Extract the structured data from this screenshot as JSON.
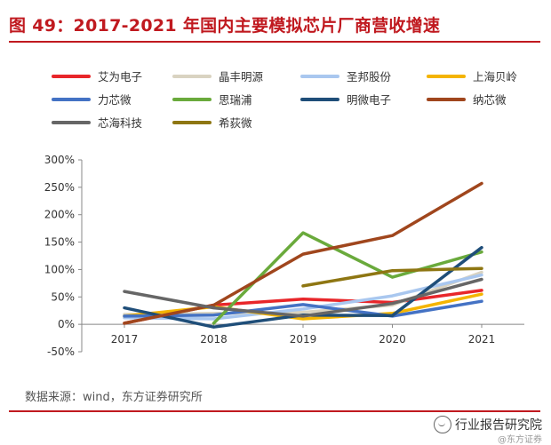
{
  "header": {
    "title": "图 49：2017-2021 年国内主要模拟芯片厂商营收增速"
  },
  "footer": {
    "source": "数据来源：wind，东方证券研究所",
    "watermark": "行业报告研究院",
    "watermark_sub": "@东方证券"
  },
  "chart_data": {
    "type": "line",
    "title": "2017-2021 年国内主要模拟芯片厂商营收增速",
    "xlabel": "",
    "ylabel": "",
    "categories": [
      "2017",
      "2018",
      "2019",
      "2020",
      "2021"
    ],
    "ylim": [
      -0.5,
      3.0
    ],
    "yticks": [
      -0.5,
      0,
      0.5,
      1.0,
      1.5,
      2.0,
      2.5,
      3.0
    ],
    "ytick_labels": [
      "-50%",
      "0%",
      "50%",
      "100%",
      "150%",
      "200%",
      "250%",
      "300%"
    ],
    "legend_position": "top",
    "series": [
      {
        "name": "艾为电子",
        "color": "#e8262a",
        "values": [
          0.02,
          0.35,
          0.46,
          0.4,
          0.62
        ]
      },
      {
        "name": "晶丰明源",
        "color": "#d9d3c1",
        "values": [
          0.18,
          0.2,
          0.22,
          0.35,
          0.95
        ]
      },
      {
        "name": "圣邦股份",
        "color": "#a9c7ef",
        "values": [
          0.12,
          0.1,
          0.28,
          0.52,
          0.9
        ]
      },
      {
        "name": "上海贝岭",
        "color": "#f4b400",
        "values": [
          0.15,
          0.32,
          0.1,
          0.2,
          0.55
        ]
      },
      {
        "name": "力芯微",
        "color": "#4472c4",
        "values": [
          0.15,
          0.17,
          0.36,
          0.15,
          0.42
        ]
      },
      {
        "name": "思瑞浦",
        "color": "#6aaa3c",
        "values": [
          null,
          0.02,
          1.67,
          0.86,
          1.32
        ]
      },
      {
        "name": "明微电子",
        "color": "#1f4e79",
        "values": [
          0.3,
          -0.05,
          0.17,
          0.16,
          1.4
        ]
      },
      {
        "name": "纳芯微",
        "color": "#a0461d",
        "values": [
          0.02,
          0.35,
          1.28,
          1.62,
          2.57
        ]
      },
      {
        "name": "芯海科技",
        "color": "#666666",
        "values": [
          0.6,
          0.3,
          0.15,
          0.38,
          0.82
        ]
      },
      {
        "name": "希荻微",
        "color": "#8e7612",
        "values": [
          null,
          null,
          0.7,
          0.98,
          1.02
        ]
      }
    ]
  }
}
